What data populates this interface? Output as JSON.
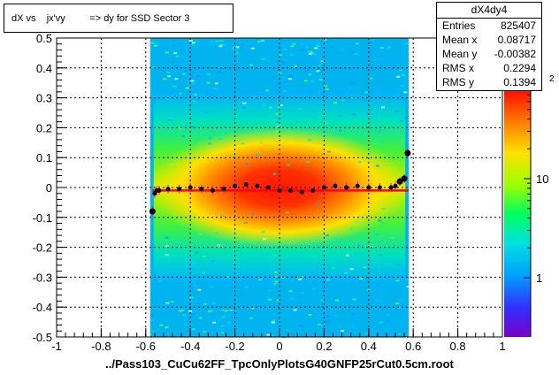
{
  "title": "dX vs    jx'vy         => dy for SSD Sector 3",
  "stats": {
    "name": "dX4dy4",
    "rows": [
      {
        "label": "Entries",
        "value": "825407"
      },
      {
        "label": "Mean x",
        "value": "0.08717"
      },
      {
        "label": "Mean y",
        "value": "-0.00382"
      },
      {
        "label": "RMS x",
        "value": "0.2294"
      },
      {
        "label": "RMS y",
        "value": "0.1394"
      }
    ]
  },
  "chart_data": {
    "type": "heatmap",
    "title": "dX vs    jx'vy         => dy for SSD Sector 3",
    "xlabel": "../Pass103_CuCu62FF_TpcOnlyPlotsG40GNFP25rCut0.5cm.root",
    "ylabel": "",
    "xlim": [
      -1,
      1
    ],
    "ylim": [
      -0.5,
      0.5
    ],
    "x_ticks": [
      "-1",
      "-0.8",
      "-0.6",
      "-0.4",
      "-0.2",
      "0",
      "0.2",
      "0.4",
      "0.6",
      "0.8",
      "1"
    ],
    "y_ticks": [
      "-0.5",
      "-0.4",
      "-0.3",
      "-0.2",
      "-0.1",
      "0",
      "0.1",
      "0.2",
      "0.3",
      "0.4",
      "0.5"
    ],
    "z_scale": "log",
    "z_ticks": [
      "1",
      "10"
    ],
    "z_exponent_label": "2",
    "filled_x_range": [
      -0.58,
      0.58
    ],
    "profile_points": {
      "x": [
        -0.57,
        -0.56,
        -0.55,
        -0.54,
        -0.5,
        -0.45,
        -0.4,
        -0.35,
        -0.3,
        -0.25,
        -0.2,
        -0.15,
        -0.1,
        -0.05,
        0,
        0.05,
        0.1,
        0.15,
        0.2,
        0.25,
        0.3,
        0.35,
        0.4,
        0.45,
        0.5,
        0.52,
        0.54,
        0.56,
        0.575
      ],
      "y": [
        -0.08,
        -0.02,
        -0.01,
        -0.01,
        -0.005,
        -0.005,
        0.0,
        -0.005,
        -0.01,
        -0.005,
        0.005,
        0.01,
        0.005,
        0.0,
        -0.01,
        -0.01,
        -0.015,
        -0.01,
        0.0,
        0.005,
        0.0,
        0.005,
        0.0,
        0.0,
        0.0,
        0.005,
        0.02,
        0.03,
        0.115
      ]
    },
    "fit_line": {
      "x": [
        -0.57,
        0.58
      ],
      "y": [
        -0.01,
        -0.01
      ],
      "color": "#ff0000"
    },
    "colors": {
      "frame": "#000000",
      "profile": "#000000",
      "fit": "#ff0000",
      "outlier": "#ff00ff"
    }
  }
}
